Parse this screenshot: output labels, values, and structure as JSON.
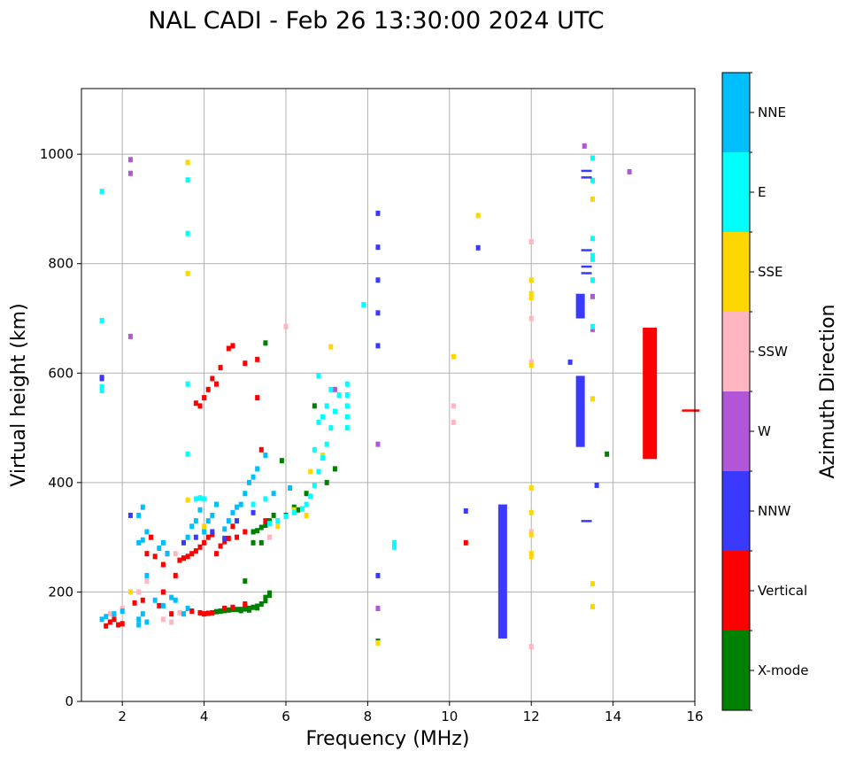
{
  "chart_data": {
    "type": "scatter",
    "title": "NAL CADI - Feb 26 13:30:00 2024 UTC",
    "xlabel": "Frequency (MHz)",
    "ylabel": "Virtual height (km)",
    "xlim": [
      1,
      16
    ],
    "ylim": [
      0,
      1120
    ],
    "xticks": [
      2,
      4,
      6,
      8,
      10,
      12,
      14,
      16
    ],
    "yticks": [
      0,
      200,
      400,
      600,
      800,
      1000
    ],
    "grid": true,
    "colorbar": {
      "label": "Azimuth Direction",
      "categories": [
        {
          "name": "X-mode",
          "color": "#008000"
        },
        {
          "name": "Vertical",
          "color": "#ff0000"
        },
        {
          "name": "NNW",
          "color": "#3a3aff"
        },
        {
          "name": "W",
          "color": "#b256d8"
        },
        {
          "name": "SSW",
          "color": "#ffb6c1"
        },
        {
          "name": "SSE",
          "color": "#ffd700"
        },
        {
          "name": "E",
          "color": "#00ffff"
        },
        {
          "name": "NNE",
          "color": "#00bfff"
        }
      ]
    },
    "series": [
      {
        "name": "X-mode",
        "points": [
          [
            4.3,
            164
          ],
          [
            4.4,
            165
          ],
          [
            4.5,
            166
          ],
          [
            4.6,
            167
          ],
          [
            4.7,
            168
          ],
          [
            4.8,
            168
          ],
          [
            4.9,
            168
          ],
          [
            5.0,
            169
          ],
          [
            5.1,
            170
          ],
          [
            5.2,
            172
          ],
          [
            5.3,
            174
          ],
          [
            5.4,
            178
          ],
          [
            5.5,
            184
          ],
          [
            5.6,
            194
          ],
          [
            4.5,
            170
          ],
          [
            4.7,
            170
          ],
          [
            4.9,
            166
          ],
          [
            5.1,
            167
          ],
          [
            5.3,
            171
          ],
          [
            5.5,
            190
          ],
          [
            5.6,
            198
          ],
          [
            5.0,
            174
          ],
          [
            5.2,
            310
          ],
          [
            5.3,
            312
          ],
          [
            5.4,
            318
          ],
          [
            5.5,
            322
          ],
          [
            5.6,
            330
          ],
          [
            5.2,
            290
          ],
          [
            5.4,
            290
          ],
          [
            5.7,
            340
          ],
          [
            5.9,
            440
          ],
          [
            6.2,
            355
          ],
          [
            6.5,
            380
          ],
          [
            6.7,
            540
          ],
          [
            5.5,
            655
          ],
          [
            7.2,
            425
          ],
          [
            7.0,
            400
          ],
          [
            6.0,
            340
          ],
          [
            6.3,
            350
          ],
          [
            5.0,
            220
          ],
          [
            13.85,
            452
          ],
          [
            8.25,
            110
          ]
        ]
      },
      {
        "name": "Vertical",
        "points": [
          [
            1.6,
            138
          ],
          [
            1.7,
            145
          ],
          [
            1.8,
            150
          ],
          [
            1.9,
            140
          ],
          [
            2.0,
            142
          ],
          [
            2.3,
            180
          ],
          [
            2.5,
            185
          ],
          [
            2.9,
            175
          ],
          [
            3.2,
            160
          ],
          [
            3.4,
            258
          ],
          [
            3.5,
            262
          ],
          [
            3.6,
            265
          ],
          [
            3.7,
            270
          ],
          [
            3.8,
            275
          ],
          [
            3.9,
            282
          ],
          [
            4.0,
            290
          ],
          [
            4.1,
            300
          ],
          [
            4.2,
            305
          ],
          [
            4.3,
            270
          ],
          [
            4.4,
            284
          ],
          [
            4.5,
            292
          ],
          [
            4.6,
            298
          ],
          [
            4.8,
            300
          ],
          [
            5.0,
            310
          ],
          [
            4.7,
            320
          ],
          [
            3.0,
            250
          ],
          [
            2.8,
            265
          ],
          [
            3.1,
            270
          ],
          [
            3.7,
            165
          ],
          [
            3.9,
            162
          ],
          [
            4.0,
            160
          ],
          [
            4.1,
            161
          ],
          [
            4.2,
            162
          ],
          [
            4.5,
            170
          ],
          [
            4.7,
            172
          ],
          [
            5.0,
            178
          ],
          [
            3.9,
            540
          ],
          [
            3.8,
            545
          ],
          [
            4.0,
            555
          ],
          [
            4.1,
            570
          ],
          [
            4.2,
            590
          ],
          [
            4.3,
            580
          ],
          [
            4.6,
            645
          ],
          [
            4.7,
            650
          ],
          [
            5.0,
            618
          ],
          [
            4.4,
            610
          ],
          [
            5.3,
            625
          ],
          [
            5.4,
            460
          ],
          [
            5.3,
            555
          ],
          [
            5.5,
            330
          ],
          [
            2.6,
            270
          ],
          [
            2.7,
            300
          ],
          [
            3.0,
            200
          ],
          [
            3.3,
            230
          ],
          [
            10.4,
            290
          ]
        ]
      },
      {
        "name": "NNW",
        "points": [
          [
            1.5,
            592
          ],
          [
            1.5,
            590
          ],
          [
            2.2,
            340
          ],
          [
            3.5,
            290
          ],
          [
            3.8,
            300
          ],
          [
            4.2,
            310
          ],
          [
            4.5,
            298
          ],
          [
            4.8,
            330
          ],
          [
            5.2,
            345
          ],
          [
            8.25,
            892
          ],
          [
            8.25,
            830
          ],
          [
            8.25,
            770
          ],
          [
            8.25,
            710
          ],
          [
            8.25,
            650
          ],
          [
            8.25,
            230
          ],
          [
            10.4,
            348
          ],
          [
            10.7,
            829
          ],
          [
            13.6,
            395
          ],
          [
            12.95,
            620
          ]
        ]
      },
      {
        "name": "W",
        "points": [
          [
            2.2,
            990
          ],
          [
            2.2,
            965
          ],
          [
            2.2,
            667
          ],
          [
            8.25,
            470
          ],
          [
            8.25,
            170
          ],
          [
            14.4,
            968
          ],
          [
            13.3,
            1015
          ],
          [
            13.5,
            740
          ],
          [
            13.5,
            680
          ],
          [
            7.2,
            570
          ]
        ]
      },
      {
        "name": "SSW",
        "points": [
          [
            1.7,
            160
          ],
          [
            2.0,
            170
          ],
          [
            2.4,
            200
          ],
          [
            2.6,
            220
          ],
          [
            3.2,
            145
          ],
          [
            3.4,
            162
          ],
          [
            3.0,
            150
          ],
          [
            3.3,
            270
          ],
          [
            5.6,
            300
          ],
          [
            6.0,
            685
          ],
          [
            10.1,
            540
          ],
          [
            10.1,
            510
          ],
          [
            12.0,
            840
          ],
          [
            12.0,
            700
          ],
          [
            12.0,
            620
          ],
          [
            12.0,
            100
          ],
          [
            12.0,
            310
          ]
        ]
      },
      {
        "name": "SSE",
        "points": [
          [
            2.2,
            200
          ],
          [
            3.6,
            985
          ],
          [
            3.6,
            782
          ],
          [
            3.6,
            368
          ],
          [
            7.1,
            648
          ],
          [
            6.6,
            420
          ],
          [
            6.9,
            450
          ],
          [
            6.5,
            340
          ],
          [
            6.2,
            350
          ],
          [
            5.8,
            320
          ],
          [
            10.1,
            630
          ],
          [
            10.7,
            888
          ],
          [
            12.0,
            770
          ],
          [
            12.0,
            745
          ],
          [
            12.0,
            738
          ],
          [
            12.0,
            615
          ],
          [
            12.0,
            345
          ],
          [
            12.0,
            390
          ],
          [
            12.0,
            305
          ],
          [
            12.0,
            265
          ],
          [
            12.0,
            270
          ],
          [
            13.5,
            918
          ],
          [
            13.5,
            215
          ],
          [
            13.5,
            173
          ],
          [
            13.5,
            553
          ],
          [
            8.25,
            107
          ],
          [
            4.0,
            320
          ]
        ]
      },
      {
        "name": "E",
        "points": [
          [
            1.5,
            932
          ],
          [
            1.5,
            696
          ],
          [
            1.5,
            575
          ],
          [
            1.5,
            568
          ],
          [
            3.6,
            953
          ],
          [
            3.6,
            855
          ],
          [
            3.6,
            580
          ],
          [
            3.6,
            452
          ],
          [
            5.6,
            325
          ],
          [
            5.8,
            330
          ],
          [
            6.0,
            338
          ],
          [
            6.2,
            345
          ],
          [
            6.4,
            352
          ],
          [
            6.5,
            360
          ],
          [
            6.6,
            375
          ],
          [
            6.7,
            395
          ],
          [
            6.8,
            420
          ],
          [
            6.9,
            445
          ],
          [
            7.0,
            470
          ],
          [
            7.1,
            500
          ],
          [
            7.2,
            530
          ],
          [
            7.3,
            560
          ],
          [
            6.7,
            460
          ],
          [
            6.8,
            510
          ],
          [
            6.9,
            520
          ],
          [
            7.0,
            540
          ],
          [
            7.1,
            570
          ],
          [
            7.5,
            540
          ],
          [
            7.5,
            580
          ],
          [
            7.5,
            560
          ],
          [
            7.5,
            520
          ],
          [
            7.5,
            500
          ],
          [
            5.2,
            360
          ],
          [
            5.5,
            370
          ],
          [
            3.8,
            370
          ],
          [
            4.0,
            370
          ],
          [
            3.9,
            372
          ],
          [
            8.65,
            290
          ],
          [
            8.65,
            282
          ],
          [
            7.9,
            725
          ],
          [
            13.5,
            993
          ],
          [
            13.5,
            952
          ],
          [
            13.5,
            846
          ],
          [
            13.5,
            815
          ],
          [
            13.5,
            808
          ],
          [
            13.5,
            770
          ],
          [
            13.5,
            685
          ],
          [
            6.8,
            595
          ]
        ]
      },
      {
        "name": "NNE",
        "points": [
          [
            1.5,
            150
          ],
          [
            1.6,
            155
          ],
          [
            1.8,
            160
          ],
          [
            2.0,
            165
          ],
          [
            2.4,
            150
          ],
          [
            2.4,
            140
          ],
          [
            2.5,
            160
          ],
          [
            2.6,
            145
          ],
          [
            2.4,
            290
          ],
          [
            2.5,
            295
          ],
          [
            2.4,
            340
          ],
          [
            2.5,
            355
          ],
          [
            2.6,
            310
          ],
          [
            2.6,
            230
          ],
          [
            2.9,
            280
          ],
          [
            3.0,
            290
          ],
          [
            3.1,
            270
          ],
          [
            3.2,
            190
          ],
          [
            3.3,
            185
          ],
          [
            3.6,
            300
          ],
          [
            3.7,
            320
          ],
          [
            3.8,
            330
          ],
          [
            3.9,
            350
          ],
          [
            4.0,
            310
          ],
          [
            4.1,
            330
          ],
          [
            4.2,
            340
          ],
          [
            4.3,
            360
          ],
          [
            4.5,
            315
          ],
          [
            4.6,
            330
          ],
          [
            4.7,
            345
          ],
          [
            4.8,
            355
          ],
          [
            4.9,
            360
          ],
          [
            5.0,
            380
          ],
          [
            5.1,
            400
          ],
          [
            5.2,
            410
          ],
          [
            5.3,
            425
          ],
          [
            5.5,
            450
          ],
          [
            3.5,
            160
          ],
          [
            3.6,
            170
          ],
          [
            2.8,
            185
          ],
          [
            3.0,
            175
          ],
          [
            5.7,
            380
          ],
          [
            6.1,
            390
          ]
        ]
      },
      {
        "name": "NNW-bars",
        "points": [
          [
            11.3,
            115
          ],
          [
            11.3,
            360
          ],
          [
            13.2,
            465
          ],
          [
            13.2,
            595
          ],
          [
            13.2,
            700
          ],
          [
            13.2,
            745
          ],
          [
            13.35,
            958
          ],
          [
            13.35,
            970
          ],
          [
            13.35,
            825
          ],
          [
            13.35,
            795
          ],
          [
            13.35,
            783
          ],
          [
            13.35,
            330
          ]
        ]
      },
      {
        "name": "Vertical-bars",
        "points": [
          [
            14.9,
            443
          ],
          [
            14.9,
            683
          ],
          [
            15.9,
            532
          ]
        ]
      }
    ]
  }
}
